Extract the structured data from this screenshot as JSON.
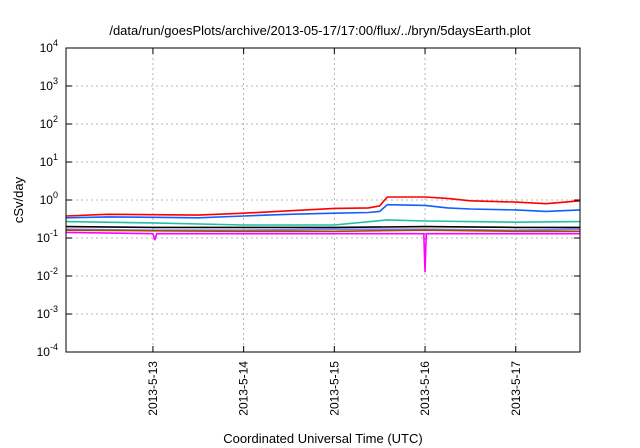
{
  "chart_data": {
    "type": "line",
    "title": "/data/run/goesPlots/archive/2013-05-17/17:00/flux/../bryn/5daysEarth.plot",
    "xlabel": "Coordinated Universal Time (UTC)",
    "ylabel": "cSv/day",
    "yscale": "log",
    "ylim": [
      0.0001,
      10000
    ],
    "yticks": [
      {
        "base": "10",
        "exp": "4"
      },
      {
        "base": "10",
        "exp": "3"
      },
      {
        "base": "10",
        "exp": "2"
      },
      {
        "base": "10",
        "exp": "1"
      },
      {
        "base": "10",
        "exp": "0"
      },
      {
        "base": "10",
        "exp": "-1"
      },
      {
        "base": "10",
        "exp": "-2"
      },
      {
        "base": "10",
        "exp": "-3"
      },
      {
        "base": "10",
        "exp": "-4"
      }
    ],
    "xlim": [
      "2013-05-12 01:00",
      "2013-05-17 17:00"
    ],
    "xticks": [
      "2013-5-13",
      "2013-5-14",
      "2013-5-15",
      "2013-5-16",
      "2013-5-17"
    ],
    "grid": true,
    "series": [
      {
        "color": "#ff0000",
        "x": [
          "2013-05-12 01:00",
          "2013-05-12 12:00",
          "2013-05-13 00:00",
          "2013-05-13 12:00",
          "2013-05-14 00:00",
          "2013-05-14 12:00",
          "2013-05-15 00:00",
          "2013-05-15 09:00",
          "2013-05-15 12:00",
          "2013-05-15 14:00",
          "2013-05-16 00:00",
          "2013-05-16 06:00",
          "2013-05-16 12:00",
          "2013-05-17 00:00",
          "2013-05-17 08:00",
          "2013-05-17 17:00"
        ],
        "values": [
          0.38,
          0.42,
          0.41,
          0.4,
          0.45,
          0.52,
          0.6,
          0.62,
          0.7,
          1.2,
          1.2,
          1.1,
          0.95,
          0.88,
          0.8,
          0.95
        ]
      },
      {
        "color": "#1060ff",
        "x": [
          "2013-05-12 01:00",
          "2013-05-12 12:00",
          "2013-05-13 00:00",
          "2013-05-13 12:00",
          "2013-05-14 00:00",
          "2013-05-14 12:00",
          "2013-05-15 00:00",
          "2013-05-15 09:00",
          "2013-05-15 12:00",
          "2013-05-15 14:00",
          "2013-05-16 00:00",
          "2013-05-16 06:00",
          "2013-05-16 12:00",
          "2013-05-17 00:00",
          "2013-05-17 08:00",
          "2013-05-17 17:00"
        ],
        "values": [
          0.34,
          0.36,
          0.35,
          0.34,
          0.38,
          0.42,
          0.45,
          0.47,
          0.5,
          0.75,
          0.72,
          0.62,
          0.58,
          0.55,
          0.5,
          0.55
        ]
      },
      {
        "color": "#20c0a0",
        "x": [
          "2013-05-12 01:00",
          "2013-05-13 00:00",
          "2013-05-14 00:00",
          "2013-05-15 00:00",
          "2013-05-15 14:00",
          "2013-05-16 00:00",
          "2013-05-17 00:00",
          "2013-05-17 17:00"
        ],
        "values": [
          0.27,
          0.25,
          0.22,
          0.22,
          0.3,
          0.28,
          0.26,
          0.27
        ]
      },
      {
        "color": "#000000",
        "x": [
          "2013-05-12 01:00",
          "2013-05-13 00:00",
          "2013-05-14 00:00",
          "2013-05-15 00:00",
          "2013-05-16 00:00",
          "2013-05-17 00:00",
          "2013-05-17 17:00"
        ],
        "values": [
          0.2,
          0.19,
          0.19,
          0.19,
          0.2,
          0.19,
          0.19
        ]
      },
      {
        "color": "#8080ff",
        "x": [
          "2013-05-12 01:00",
          "2013-05-13 00:00",
          "2013-05-14 00:00",
          "2013-05-15 00:00",
          "2013-05-16 00:00",
          "2013-05-17 00:00",
          "2013-05-17 17:00"
        ],
        "values": [
          0.17,
          0.16,
          0.16,
          0.17,
          0.17,
          0.16,
          0.17
        ]
      },
      {
        "color": "#a05000",
        "x": [
          "2013-05-12 01:00",
          "2013-05-13 00:00",
          "2013-05-14 00:00",
          "2013-05-15 00:00",
          "2013-05-16 00:00",
          "2013-05-17 00:00",
          "2013-05-17 17:00"
        ],
        "values": [
          0.16,
          0.155,
          0.15,
          0.15,
          0.16,
          0.15,
          0.15
        ]
      },
      {
        "color": "#ff00ff",
        "x": [
          "2013-05-12 01:00",
          "2013-05-13 00:00",
          "2013-05-13 00:30",
          "2013-05-13 01:00",
          "2013-05-14 00:00",
          "2013-05-15 00:00",
          "2013-05-15 23:40",
          "2013-05-16 00:00",
          "2013-05-16 00:20",
          "2013-05-17 00:00",
          "2013-05-17 17:00"
        ],
        "values": [
          0.14,
          0.13,
          0.09,
          0.13,
          0.13,
          0.13,
          0.13,
          0.013,
          0.13,
          0.13,
          0.13
        ]
      }
    ]
  }
}
